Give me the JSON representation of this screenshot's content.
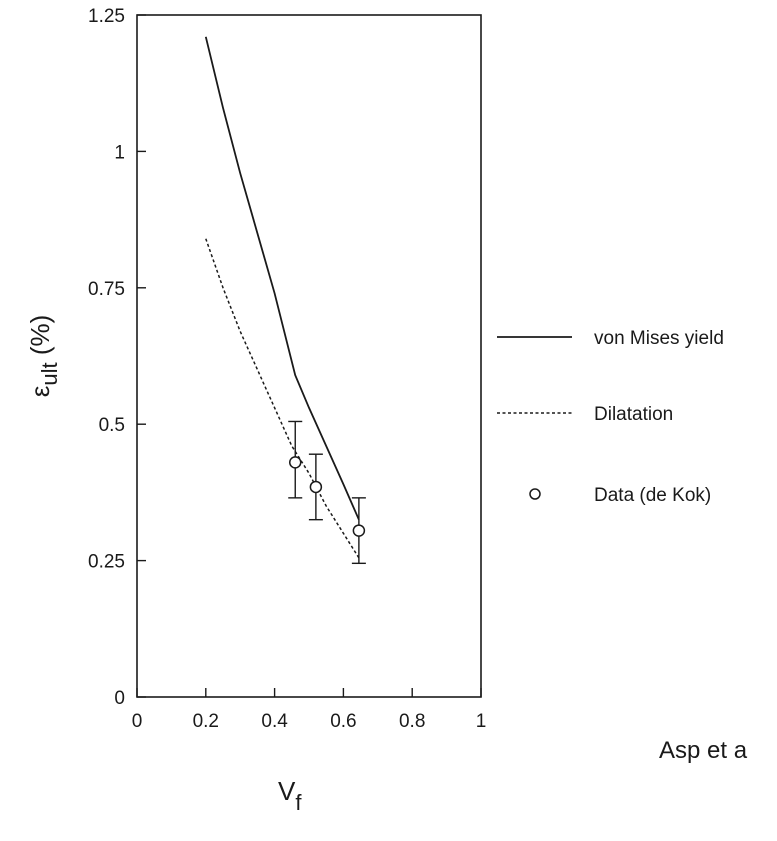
{
  "chart_data": {
    "type": "line",
    "xlabel": "V",
    "xlabel_sub": "f",
    "ylabel": "ε",
    "ylabel_sub": "ult",
    "ylabel_suffix": " (%)",
    "xlim": [
      0,
      1
    ],
    "ylim": [
      0,
      1.25
    ],
    "xticks": [
      0,
      0.2,
      0.4,
      0.6,
      0.8,
      1
    ],
    "xtick_labels": [
      "0",
      "0.2",
      "0.4",
      "0.6",
      "0.8",
      "1"
    ],
    "yticks": [
      0,
      0.25,
      0.5,
      0.75,
      1,
      1.25
    ],
    "ytick_labels": [
      "0",
      "0.25",
      "0.5",
      "0.75",
      "1",
      "1.25"
    ],
    "grid": false,
    "legend_position": "right, outside plot",
    "series": [
      {
        "name": "von Mises yield",
        "style": "solid",
        "x": [
          0.2,
          0.25,
          0.3,
          0.35,
          0.4,
          0.46,
          0.5,
          0.55,
          0.6,
          0.645
        ],
        "y": [
          1.21,
          1.08,
          0.96,
          0.85,
          0.74,
          0.59,
          0.53,
          0.46,
          0.39,
          0.325
        ]
      },
      {
        "name": "Dilatation",
        "style": "dashed",
        "x": [
          0.2,
          0.25,
          0.3,
          0.35,
          0.4,
          0.45,
          0.5,
          0.55,
          0.6,
          0.645
        ],
        "y": [
          0.84,
          0.75,
          0.67,
          0.6,
          0.53,
          0.46,
          0.41,
          0.35,
          0.3,
          0.255
        ]
      },
      {
        "name": "Data (de Kok)",
        "style": "markers",
        "x": [
          0.46,
          0.52,
          0.645
        ],
        "y": [
          0.43,
          0.385,
          0.305
        ],
        "error_low": [
          0.365,
          0.325,
          0.245
        ],
        "error_high": [
          0.505,
          0.445,
          0.365
        ]
      }
    ],
    "annotations": [
      "Asp et a"
    ]
  }
}
